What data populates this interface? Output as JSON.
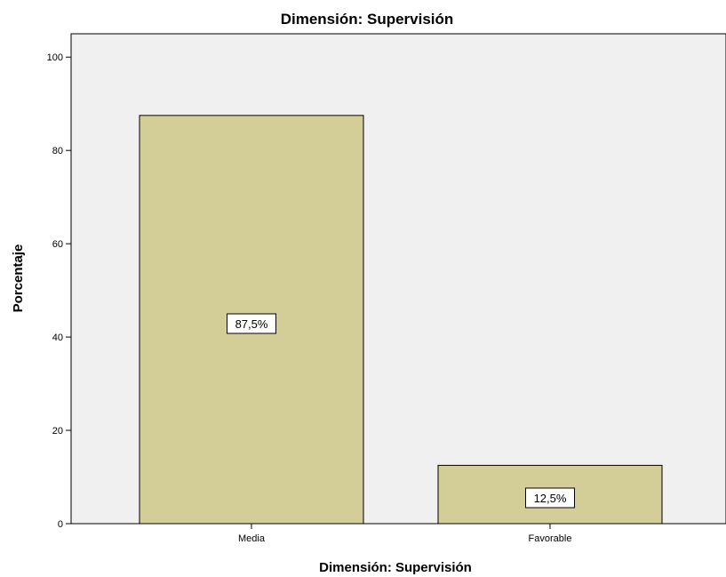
{
  "chart_data": {
    "type": "bar",
    "title": "Dimensión: Supervisión",
    "xlabel": "Dimensión: Supervisión",
    "ylabel": "Porcentaje",
    "categories": [
      "Media",
      "Favorable"
    ],
    "values": [
      87.5,
      12.5
    ],
    "data_labels": [
      "87,5%",
      "12,5%"
    ],
    "ylim": [
      0,
      105
    ],
    "yticks": [
      0,
      20,
      40,
      60,
      80,
      100
    ],
    "grid": false,
    "colors": {
      "bar_fill": "#d3ce98",
      "plot_background": "#f0f0f0",
      "bar_stroke": "#000000"
    }
  }
}
